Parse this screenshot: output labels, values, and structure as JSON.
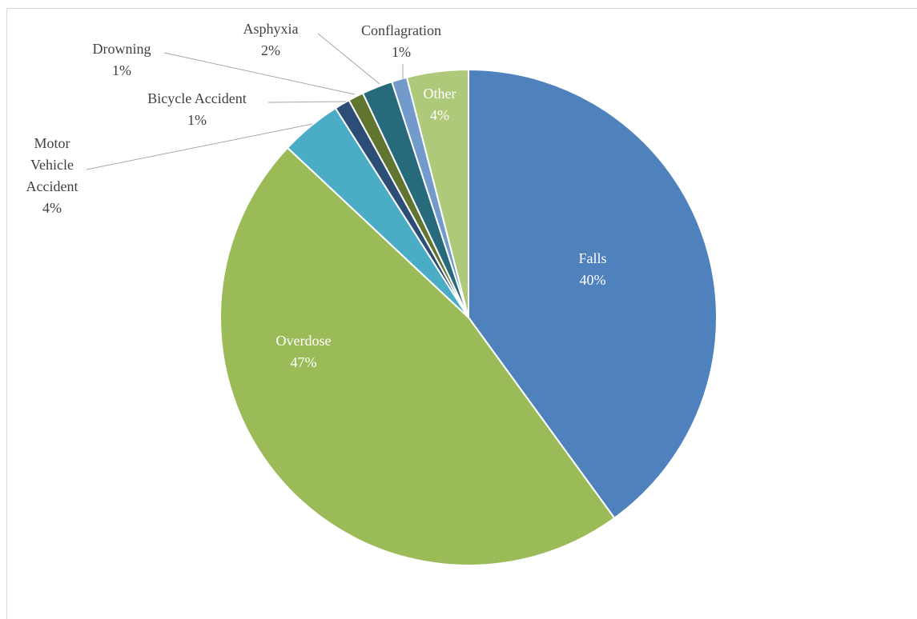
{
  "chart_data": {
    "type": "pie",
    "categories": [
      "Falls",
      "Overdose",
      "Motor Vehicle Accident",
      "Bicycle Accident",
      "Drowning",
      "Asphyxia",
      "Conflagration",
      "Other"
    ],
    "values": [
      40,
      47,
      4,
      1,
      1,
      2,
      1,
      4
    ],
    "value_labels": [
      "40%",
      "47%",
      "4%",
      "1%",
      "1%",
      "2%",
      "1%",
      "4%"
    ],
    "colors": [
      "#4f81bd",
      "#9bbb59",
      "#4bacc6",
      "#2c4d75",
      "#5f7530",
      "#276a7c",
      "#729aca",
      "#afc97a"
    ]
  }
}
